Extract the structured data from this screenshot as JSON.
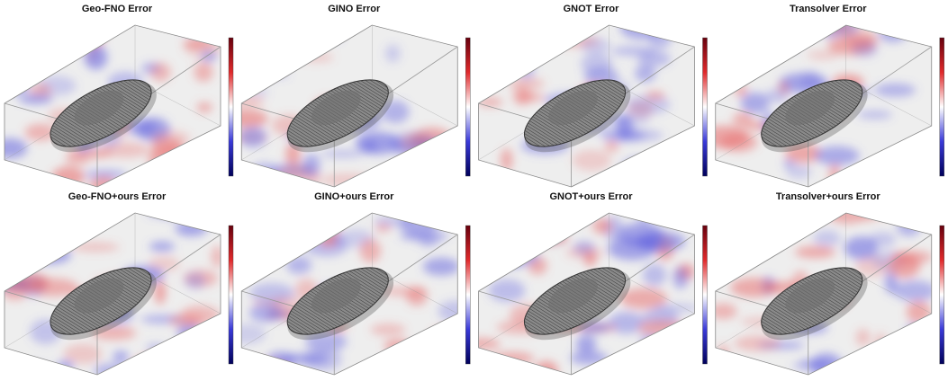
{
  "panels": [
    {
      "title": "Geo-FNO Error"
    },
    {
      "title": "GINO Error"
    },
    {
      "title": "GNOT Error"
    },
    {
      "title": "Transolver Error"
    },
    {
      "title": "Geo-FNO+ours Error"
    },
    {
      "title": "GINO+ours Error"
    },
    {
      "title": "GNOT+ours Error"
    },
    {
      "title": "Transolver+ours Error"
    }
  ]
}
